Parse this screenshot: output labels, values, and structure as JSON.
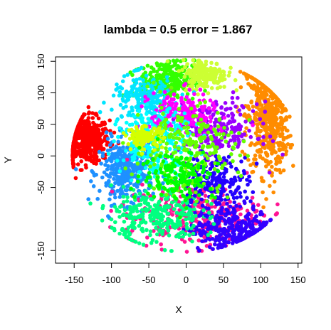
{
  "chart_data": {
    "type": "scatter",
    "title": "lambda = 0.5 error = 1.867",
    "xlabel": "X",
    "ylabel": "Y",
    "xlim": [
      -175,
      155
    ],
    "ylim": [
      -170,
      157
    ],
    "x_ticks": [
      -150,
      -100,
      -50,
      0,
      50,
      100,
      150
    ],
    "y_ticks": [
      -150,
      -50,
      0,
      50,
      100,
      150
    ],
    "x_tick_labels": [
      "-150",
      "-100",
      "-50",
      "0",
      "50",
      "100",
      "150"
    ],
    "y_tick_labels": [
      "-150",
      "-50",
      "0",
      "50",
      "100",
      "150"
    ],
    "grid": false,
    "legend": "none",
    "clusters": [
      {
        "color": "#ff0000",
        "cx": -135,
        "cy": 25,
        "sx": 16,
        "sy": 18,
        "n": 520
      },
      {
        "color": "#ff8c00",
        "cx": 110,
        "cy": 60,
        "sx": 14,
        "sy": 45,
        "n": 520
      },
      {
        "color": "#1e90ff",
        "cx": -80,
        "cy": -25,
        "sx": 18,
        "sy": 25,
        "n": 360
      },
      {
        "color": "#33ff00",
        "cx": -25,
        "cy": 120,
        "sx": 18,
        "sy": 16,
        "n": 300
      },
      {
        "color": "#ccff33",
        "cx": 25,
        "cy": 130,
        "sx": 15,
        "sy": 12,
        "n": 200
      },
      {
        "color": "#ff1493",
        "cx": 10,
        "cy": -95,
        "sx": 45,
        "sy": 25,
        "n": 330
      },
      {
        "color": "#3300ff",
        "cx": 60,
        "cy": -115,
        "sx": 28,
        "sy": 18,
        "n": 300
      },
      {
        "color": "#00ff80",
        "cx": -40,
        "cy": -95,
        "sx": 30,
        "sy": 22,
        "n": 280
      },
      {
        "color": "#00e5ff",
        "cx": -55,
        "cy": 90,
        "sx": 22,
        "sy": 18,
        "n": 220
      },
      {
        "color": "#9900ff",
        "cx": 40,
        "cy": 40,
        "sx": 28,
        "sy": 22,
        "n": 240
      },
      {
        "color": "#ff00ff",
        "cx": -5,
        "cy": 65,
        "sx": 22,
        "sy": 18,
        "n": 220
      },
      {
        "color": "#00ffff",
        "cx": -40,
        "cy": 20,
        "sx": 25,
        "sy": 25,
        "n": 240
      },
      {
        "color": "#2200ff",
        "cx": 40,
        "cy": -40,
        "sx": 22,
        "sy": 20,
        "n": 200
      },
      {
        "color": "#66ff00",
        "cx": 0,
        "cy": 10,
        "sx": 35,
        "sy": 35,
        "n": 240
      },
      {
        "color": "#d4ff00",
        "cx": -55,
        "cy": 30,
        "sx": 12,
        "sy": 8,
        "n": 120
      },
      {
        "color": "#00ff00",
        "cx": -10,
        "cy": -30,
        "sx": 25,
        "sy": 20,
        "n": 160
      }
    ]
  }
}
